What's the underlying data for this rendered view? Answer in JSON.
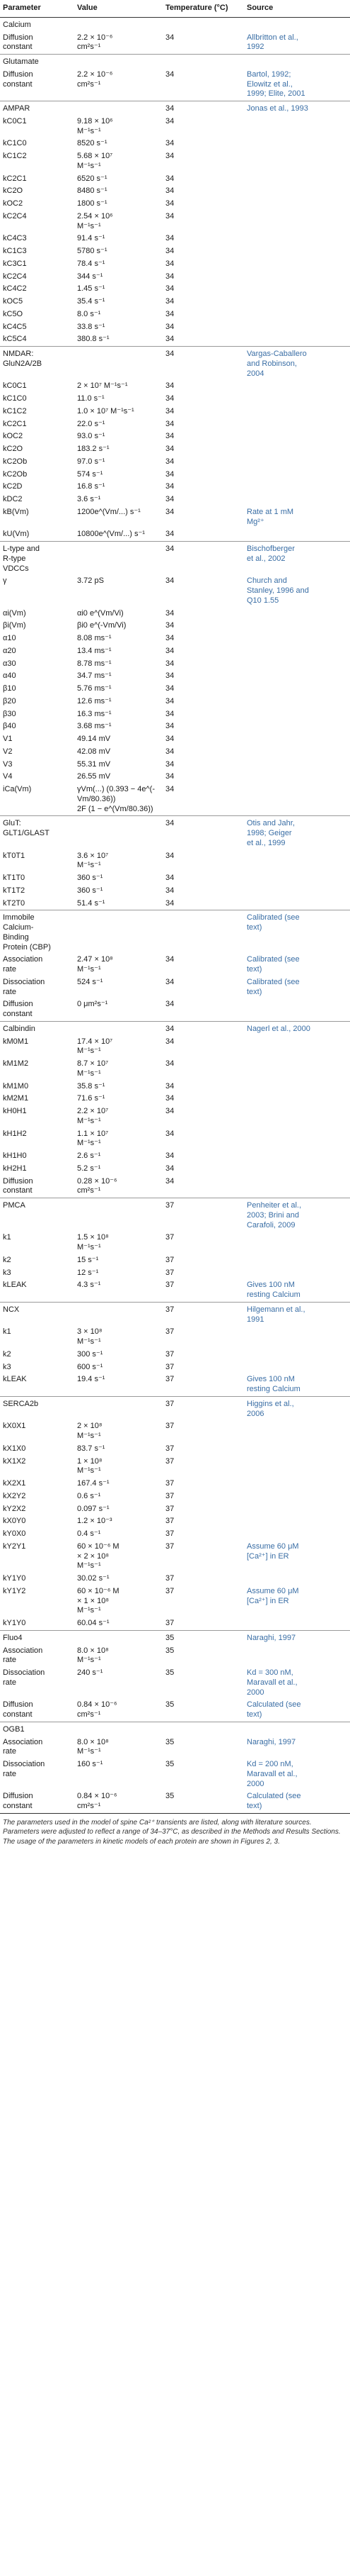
{
  "headers": [
    "Parameter",
    "Value",
    "Temperature (°C)",
    "Source"
  ],
  "sections": [
    {
      "title": "Calcium",
      "temp": "",
      "source": "",
      "rows": [
        {
          "param": "Diffusion\nconstant",
          "value": "2.2 × 10⁻⁶\ncm²s⁻¹",
          "temp": "34",
          "source": "Allbritton et al.,\n1992"
        }
      ]
    },
    {
      "title": "Glutamate",
      "temp": "",
      "source": "",
      "rows": [
        {
          "param": "Diffusion\nconstant",
          "value": "2.2 × 10⁻⁶\ncm²s⁻¹",
          "temp": "34",
          "source": "Bartol, 1992;\nElowitz et al.,\n1999; Elite, 2001"
        }
      ]
    },
    {
      "title": "AMPAR",
      "temp": "34",
      "source": "Jonas et al., 1993",
      "rows": [
        {
          "param": "kC0C1",
          "value": "9.18 × 10⁶\nM⁻¹s⁻¹",
          "temp": "34",
          "source": ""
        },
        {
          "param": "kC1C0",
          "value": "8520 s⁻¹",
          "temp": "34",
          "source": ""
        },
        {
          "param": "kC1C2",
          "value": "5.68 × 10⁷\nM⁻¹s⁻¹",
          "temp": "34",
          "source": ""
        },
        {
          "param": "kC2C1",
          "value": "6520 s⁻¹",
          "temp": "34",
          "source": ""
        },
        {
          "param": "kC2O",
          "value": "8480 s⁻¹",
          "temp": "34",
          "source": ""
        },
        {
          "param": "kOC2",
          "value": "1800 s⁻¹",
          "temp": "34",
          "source": ""
        },
        {
          "param": "kC2C4",
          "value": "2.54 × 10⁶\nM⁻¹s⁻¹",
          "temp": "34",
          "source": ""
        },
        {
          "param": "kC4C3",
          "value": "91.4 s⁻¹",
          "temp": "34",
          "source": ""
        },
        {
          "param": "kC1C3",
          "value": "5780 s⁻¹",
          "temp": "34",
          "source": ""
        },
        {
          "param": "kC3C1",
          "value": "78.4 s⁻¹",
          "temp": "34",
          "source": ""
        },
        {
          "param": "kC2C4",
          "value": "344 s⁻¹",
          "temp": "34",
          "source": ""
        },
        {
          "param": "kC4C2",
          "value": "1.45 s⁻¹",
          "temp": "34",
          "source": ""
        },
        {
          "param": "kOC5",
          "value": "35.4 s⁻¹",
          "temp": "34",
          "source": ""
        },
        {
          "param": "kC5O",
          "value": "8.0 s⁻¹",
          "temp": "34",
          "source": ""
        },
        {
          "param": "kC4C5",
          "value": "33.8 s⁻¹",
          "temp": "34",
          "source": ""
        },
        {
          "param": "kC5C4",
          "value": "380.8 s⁻¹",
          "temp": "34",
          "source": ""
        }
      ]
    },
    {
      "title": "NMDAR:\nGluN2A/2B",
      "temp": "34",
      "source": "Vargas-Caballero\nand Robinson,\n2004",
      "rows": [
        {
          "param": "kC0C1",
          "value": "2 × 10⁷ M⁻¹s⁻¹",
          "temp": "34",
          "source": ""
        },
        {
          "param": "kC1C0",
          "value": "11.0 s⁻¹",
          "temp": "34",
          "source": ""
        },
        {
          "param": "kC1C2",
          "value": "1.0 × 10⁷ M⁻¹s⁻¹",
          "temp": "34",
          "source": ""
        },
        {
          "param": "kC2C1",
          "value": "22.0 s⁻¹",
          "temp": "34",
          "source": ""
        },
        {
          "param": "kOC2",
          "value": "93.0 s⁻¹",
          "temp": "34",
          "source": ""
        },
        {
          "param": "kC2O",
          "value": "183.2 s⁻¹",
          "temp": "34",
          "source": ""
        },
        {
          "param": "kC2Ob",
          "value": "97.0 s⁻¹",
          "temp": "34",
          "source": ""
        },
        {
          "param": "kC2Ob",
          "value": "574 s⁻¹",
          "temp": "34",
          "source": ""
        },
        {
          "param": "kC2D",
          "value": "16.8 s⁻¹",
          "temp": "34",
          "source": ""
        },
        {
          "param": "kDC2",
          "value": "3.6 s⁻¹",
          "temp": "34",
          "source": ""
        },
        {
          "param": "kB(Vm)",
          "value": "1200e^(Vm/...) s⁻¹",
          "temp": "34",
          "source": "Rate at 1 mM\nMg²⁺"
        },
        {
          "param": "kU(Vm)",
          "value": "10800e^(Vm/...) s⁻¹",
          "temp": "34",
          "source": ""
        }
      ]
    },
    {
      "title": "L-type and\nR-type\nVDCCs",
      "temp": "34",
      "source": "Bischofberger\net al., 2002",
      "rows": [
        {
          "param": "γ",
          "value": "3.72 pS",
          "temp": "34",
          "source": "Church and\nStanley, 1996 and\nQ10 1.55"
        },
        {
          "param": "αi(Vm)",
          "value": "αi0 e^(Vm/Vi)",
          "temp": "34",
          "source": ""
        },
        {
          "param": "βi(Vm)",
          "value": "βi0 e^(-Vm/Vi)",
          "temp": "34",
          "source": ""
        },
        {
          "param": "α10",
          "value": "8.08 ms⁻¹",
          "temp": "34",
          "source": ""
        },
        {
          "param": "α20",
          "value": "13.4 ms⁻¹",
          "temp": "34",
          "source": ""
        },
        {
          "param": "α30",
          "value": "8.78 ms⁻¹",
          "temp": "34",
          "source": ""
        },
        {
          "param": "α40",
          "value": "34.7 ms⁻¹",
          "temp": "34",
          "source": ""
        },
        {
          "param": "β10",
          "value": "5.76 ms⁻¹",
          "temp": "34",
          "source": ""
        },
        {
          "param": "β20",
          "value": "12.6 ms⁻¹",
          "temp": "34",
          "source": ""
        },
        {
          "param": "β30",
          "value": "16.3 ms⁻¹",
          "temp": "34",
          "source": ""
        },
        {
          "param": "β40",
          "value": "3.68 ms⁻¹",
          "temp": "34",
          "source": ""
        },
        {
          "param": "V1",
          "value": "49.14 mV",
          "temp": "34",
          "source": ""
        },
        {
          "param": "V2",
          "value": "42.08 mV",
          "temp": "34",
          "source": ""
        },
        {
          "param": "V3",
          "value": "55.31 mV",
          "temp": "34",
          "source": ""
        },
        {
          "param": "V4",
          "value": "26.55 mV",
          "temp": "34",
          "source": ""
        },
        {
          "param": "iCa(Vm)",
          "value": "γVm(...) (0.393 − 4e^(-Vm/80.36))\n2F (1 − e^(Vm/80.36))",
          "temp": "34",
          "source": ""
        }
      ]
    },
    {
      "title": "GluT:\nGLT1/GLAST",
      "temp": "34",
      "source": "Otis and Jahr,\n1998; Geiger\net al., 1999",
      "rows": [
        {
          "param": "kT0T1",
          "value": "3.6 × 10⁷\nM⁻¹s⁻¹",
          "temp": "34",
          "source": ""
        },
        {
          "param": "kT1T0",
          "value": "360 s⁻¹",
          "temp": "34",
          "source": ""
        },
        {
          "param": "kT1T2",
          "value": "360 s⁻¹",
          "temp": "34",
          "source": ""
        },
        {
          "param": "kT2T0",
          "value": "51.4 s⁻¹",
          "temp": "34",
          "source": ""
        }
      ]
    },
    {
      "title": "Immobile\nCalcium-\nBinding\nProtein (CBP)",
      "temp": "",
      "source": "Calibrated (see\ntext)",
      "rows": [
        {
          "param": "Association\nrate",
          "value": "2.47 × 10⁸\nM⁻¹s⁻¹",
          "temp": "34",
          "source": "Calibrated (see\ntext)"
        },
        {
          "param": "Dissociation\nrate",
          "value": "524 s⁻¹",
          "temp": "34",
          "source": "Calibrated (see\ntext)"
        },
        {
          "param": "Diffusion\nconstant",
          "value": "0 μm²s⁻¹",
          "temp": "34",
          "source": ""
        }
      ]
    },
    {
      "title": "Calbindin",
      "temp": "34",
      "source": "Nagerl et al., 2000",
      "rows": [
        {
          "param": "kM0M1",
          "value": "17.4 × 10⁷\nM⁻¹s⁻¹",
          "temp": "34",
          "source": ""
        },
        {
          "param": "kM1M2",
          "value": "8.7 × 10⁷\nM⁻¹s⁻¹",
          "temp": "34",
          "source": ""
        },
        {
          "param": "kM1M0",
          "value": "35.8 s⁻¹",
          "temp": "34",
          "source": ""
        },
        {
          "param": "kM2M1",
          "value": "71.6 s⁻¹",
          "temp": "34",
          "source": ""
        },
        {
          "param": "kH0H1",
          "value": "2.2 × 10⁷\nM⁻¹s⁻¹",
          "temp": "34",
          "source": ""
        },
        {
          "param": "kH1H2",
          "value": "1.1 × 10⁷\nM⁻¹s⁻¹",
          "temp": "34",
          "source": ""
        },
        {
          "param": "kH1H0",
          "value": "2.6 s⁻¹",
          "temp": "34",
          "source": ""
        },
        {
          "param": "kH2H1",
          "value": "5.2 s⁻¹",
          "temp": "34",
          "source": ""
        },
        {
          "param": "Diffusion\nconstant",
          "value": "0.28 × 10⁻⁶\ncm²s⁻¹",
          "temp": "34",
          "source": ""
        }
      ]
    },
    {
      "title": "PMCA",
      "temp": "37",
      "source": "Penheiter et al.,\n2003; Brini and\nCarafoli, 2009",
      "rows": [
        {
          "param": "k1",
          "value": "1.5 × 10⁸\nM⁻¹s⁻¹",
          "temp": "37",
          "source": ""
        },
        {
          "param": "k2",
          "value": "15 s⁻¹",
          "temp": "37",
          "source": ""
        },
        {
          "param": "k3",
          "value": "12 s⁻¹",
          "temp": "37",
          "source": ""
        },
        {
          "param": "kLEAK",
          "value": "4.3 s⁻¹",
          "temp": "37",
          "source": "Gives 100 nM\nresting Calcium"
        }
      ]
    },
    {
      "title": "NCX",
      "temp": "37",
      "source": "Hilgemann et al.,\n1991",
      "rows": [
        {
          "param": "k1",
          "value": "3 × 10⁸\nM⁻¹s⁻¹",
          "temp": "37",
          "source": ""
        },
        {
          "param": "k2",
          "value": "300 s⁻¹",
          "temp": "37",
          "source": ""
        },
        {
          "param": "k3",
          "value": "600 s⁻¹",
          "temp": "37",
          "source": ""
        },
        {
          "param": "kLEAK",
          "value": "19.4 s⁻¹",
          "temp": "37",
          "source": "Gives 100 nM\nresting Calcium"
        }
      ]
    },
    {
      "title": "SERCA2b",
      "temp": "37",
      "source": "Higgins et al.,\n2006",
      "rows": [
        {
          "param": "kX0X1",
          "value": "2 × 10⁸\nM⁻¹s⁻¹",
          "temp": "37",
          "source": ""
        },
        {
          "param": "kX1X0",
          "value": "83.7 s⁻¹",
          "temp": "37",
          "source": ""
        },
        {
          "param": "kX1X2",
          "value": "1 × 10⁸\nM⁻¹s⁻¹",
          "temp": "37",
          "source": ""
        },
        {
          "param": "kX2X1",
          "value": "167.4 s⁻¹",
          "temp": "37",
          "source": ""
        },
        {
          "param": "kX2Y2",
          "value": "0.6 s⁻¹",
          "temp": "37",
          "source": ""
        },
        {
          "param": "kY2X2",
          "value": "0.097 s⁻¹",
          "temp": "37",
          "source": ""
        },
        {
          "param": "kX0Y0",
          "value": "1.2 × 10⁻³",
          "temp": "37",
          "source": ""
        },
        {
          "param": "kY0X0",
          "value": "0.4 s⁻¹",
          "temp": "37",
          "source": ""
        },
        {
          "param": "kY2Y1",
          "value": "60 × 10⁻⁶ M\n× 2 × 10⁸\nM⁻¹s⁻¹",
          "temp": "37",
          "source": "Assume 60 μM\n[Ca²⁺] in ER"
        },
        {
          "param": "kY1Y0",
          "value": "30.02 s⁻¹",
          "temp": "37",
          "source": ""
        },
        {
          "param": "kY1Y2",
          "value": "60 × 10⁻⁶ M\n× 1 × 10⁸\nM⁻¹s⁻¹",
          "temp": "37",
          "source": "Assume 60 μM\n[Ca²⁺] in ER"
        },
        {
          "param": "kY1Y0",
          "value": "60.04 s⁻¹",
          "temp": "37",
          "source": ""
        }
      ]
    },
    {
      "title": "Fluo4",
      "temp": "35",
      "source": "Naraghi, 1997",
      "rows": [
        {
          "param": "Association\nrate",
          "value": "8.0 × 10⁸\nM⁻¹s⁻¹",
          "temp": "35",
          "source": ""
        },
        {
          "param": "Dissociation\nrate",
          "value": "240 s⁻¹",
          "temp": "35",
          "source": "Kd = 300 nM,\nMaravall et al.,\n2000"
        },
        {
          "param": "Diffusion\nconstant",
          "value": "0.84 × 10⁻⁶\ncm²s⁻¹",
          "temp": "35",
          "source": "Calculated (see\ntext)"
        }
      ]
    },
    {
      "title": "OGB1",
      "temp": "",
      "source": "",
      "rows": [
        {
          "param": "Association\nrate",
          "value": "8.0 × 10⁸\nM⁻¹s⁻¹",
          "temp": "35",
          "source": "Naraghi, 1997"
        },
        {
          "param": "Dissociation\nrate",
          "value": "160 s⁻¹",
          "temp": "35",
          "source": "Kd = 200 nM,\nMaravall et al.,\n2000"
        },
        {
          "param": "Diffusion\nconstant",
          "value": "0.84 × 10⁻⁶\ncm²s⁻¹",
          "temp": "35",
          "source": "Calculated (see\ntext)"
        }
      ]
    }
  ],
  "footnote": "The parameters used in the model of spine Ca²⁺ transients are listed, along with literature sources. Parameters were adjusted to reflect a range of 34–37°C, as described in the Methods and Results Sections. The usage of the parameters in kinetic models of each protein are shown in Figures 2, 3."
}
